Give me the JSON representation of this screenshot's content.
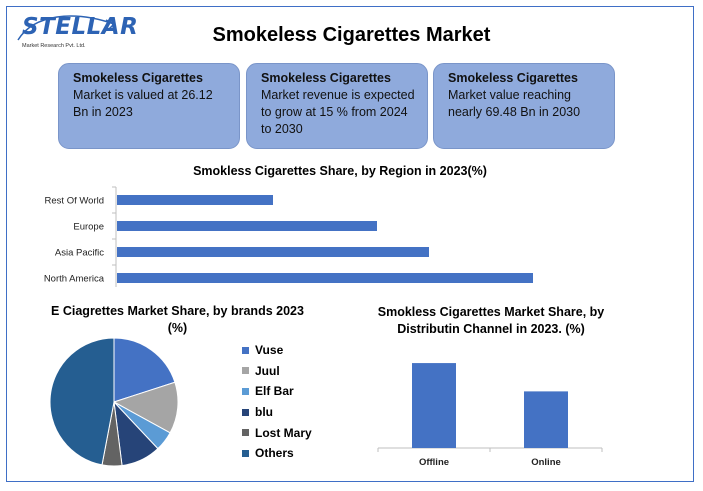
{
  "logo": {
    "word": "STELLAR",
    "tagline": "Market Research Pvt. Ltd."
  },
  "title": "Smokeless Cigarettes Market",
  "cards": [
    {
      "bold": "Smokeless Cigarettes",
      "text": "Market is valued at 26.12 Bn in 2023"
    },
    {
      "bold": "Smokeless Cigarettes",
      "text": "Market revenue is expected to grow at 15 % from 2024 to 2030"
    },
    {
      "bold": "Smokeless Cigarettes",
      "text": "Market value reaching nearly 69.48 Bn in 2030"
    }
  ],
  "colors": {
    "accent": "#4472c4",
    "card": "#8faadc",
    "border": "#3f6fc6"
  },
  "chart_data": [
    {
      "type": "bar",
      "orientation": "horizontal",
      "title": "Smokless Cigarettes Share, by Region in 2023(%)",
      "categories": [
        "Rest Of World",
        "Europe",
        "Asia Pacific",
        "North America"
      ],
      "values": [
        12,
        20,
        24,
        32
      ],
      "xlim": [
        0,
        35
      ],
      "color": "#4472c4"
    },
    {
      "type": "pie",
      "title": "E Ciagrettes Market Share, by brands 2023 (%)",
      "labels": [
        "Vuse",
        "Juul",
        "Elf Bar",
        "blu",
        "Lost Mary",
        "Others"
      ],
      "values": [
        20,
        13,
        5,
        10,
        5,
        47
      ],
      "colors": [
        "#4472c4",
        "#a5a5a5",
        "#5b9bd5",
        "#264478",
        "#636363",
        "#255e91"
      ],
      "legend": "right"
    },
    {
      "type": "bar",
      "title": "Smokless Cigarettes Market Share, by Distributin Channel in 2023. (%)",
      "categories": [
        "Offline",
        "Online"
      ],
      "values": [
        60,
        40
      ],
      "ylim": [
        0,
        65
      ],
      "color": "#4472c4"
    }
  ]
}
